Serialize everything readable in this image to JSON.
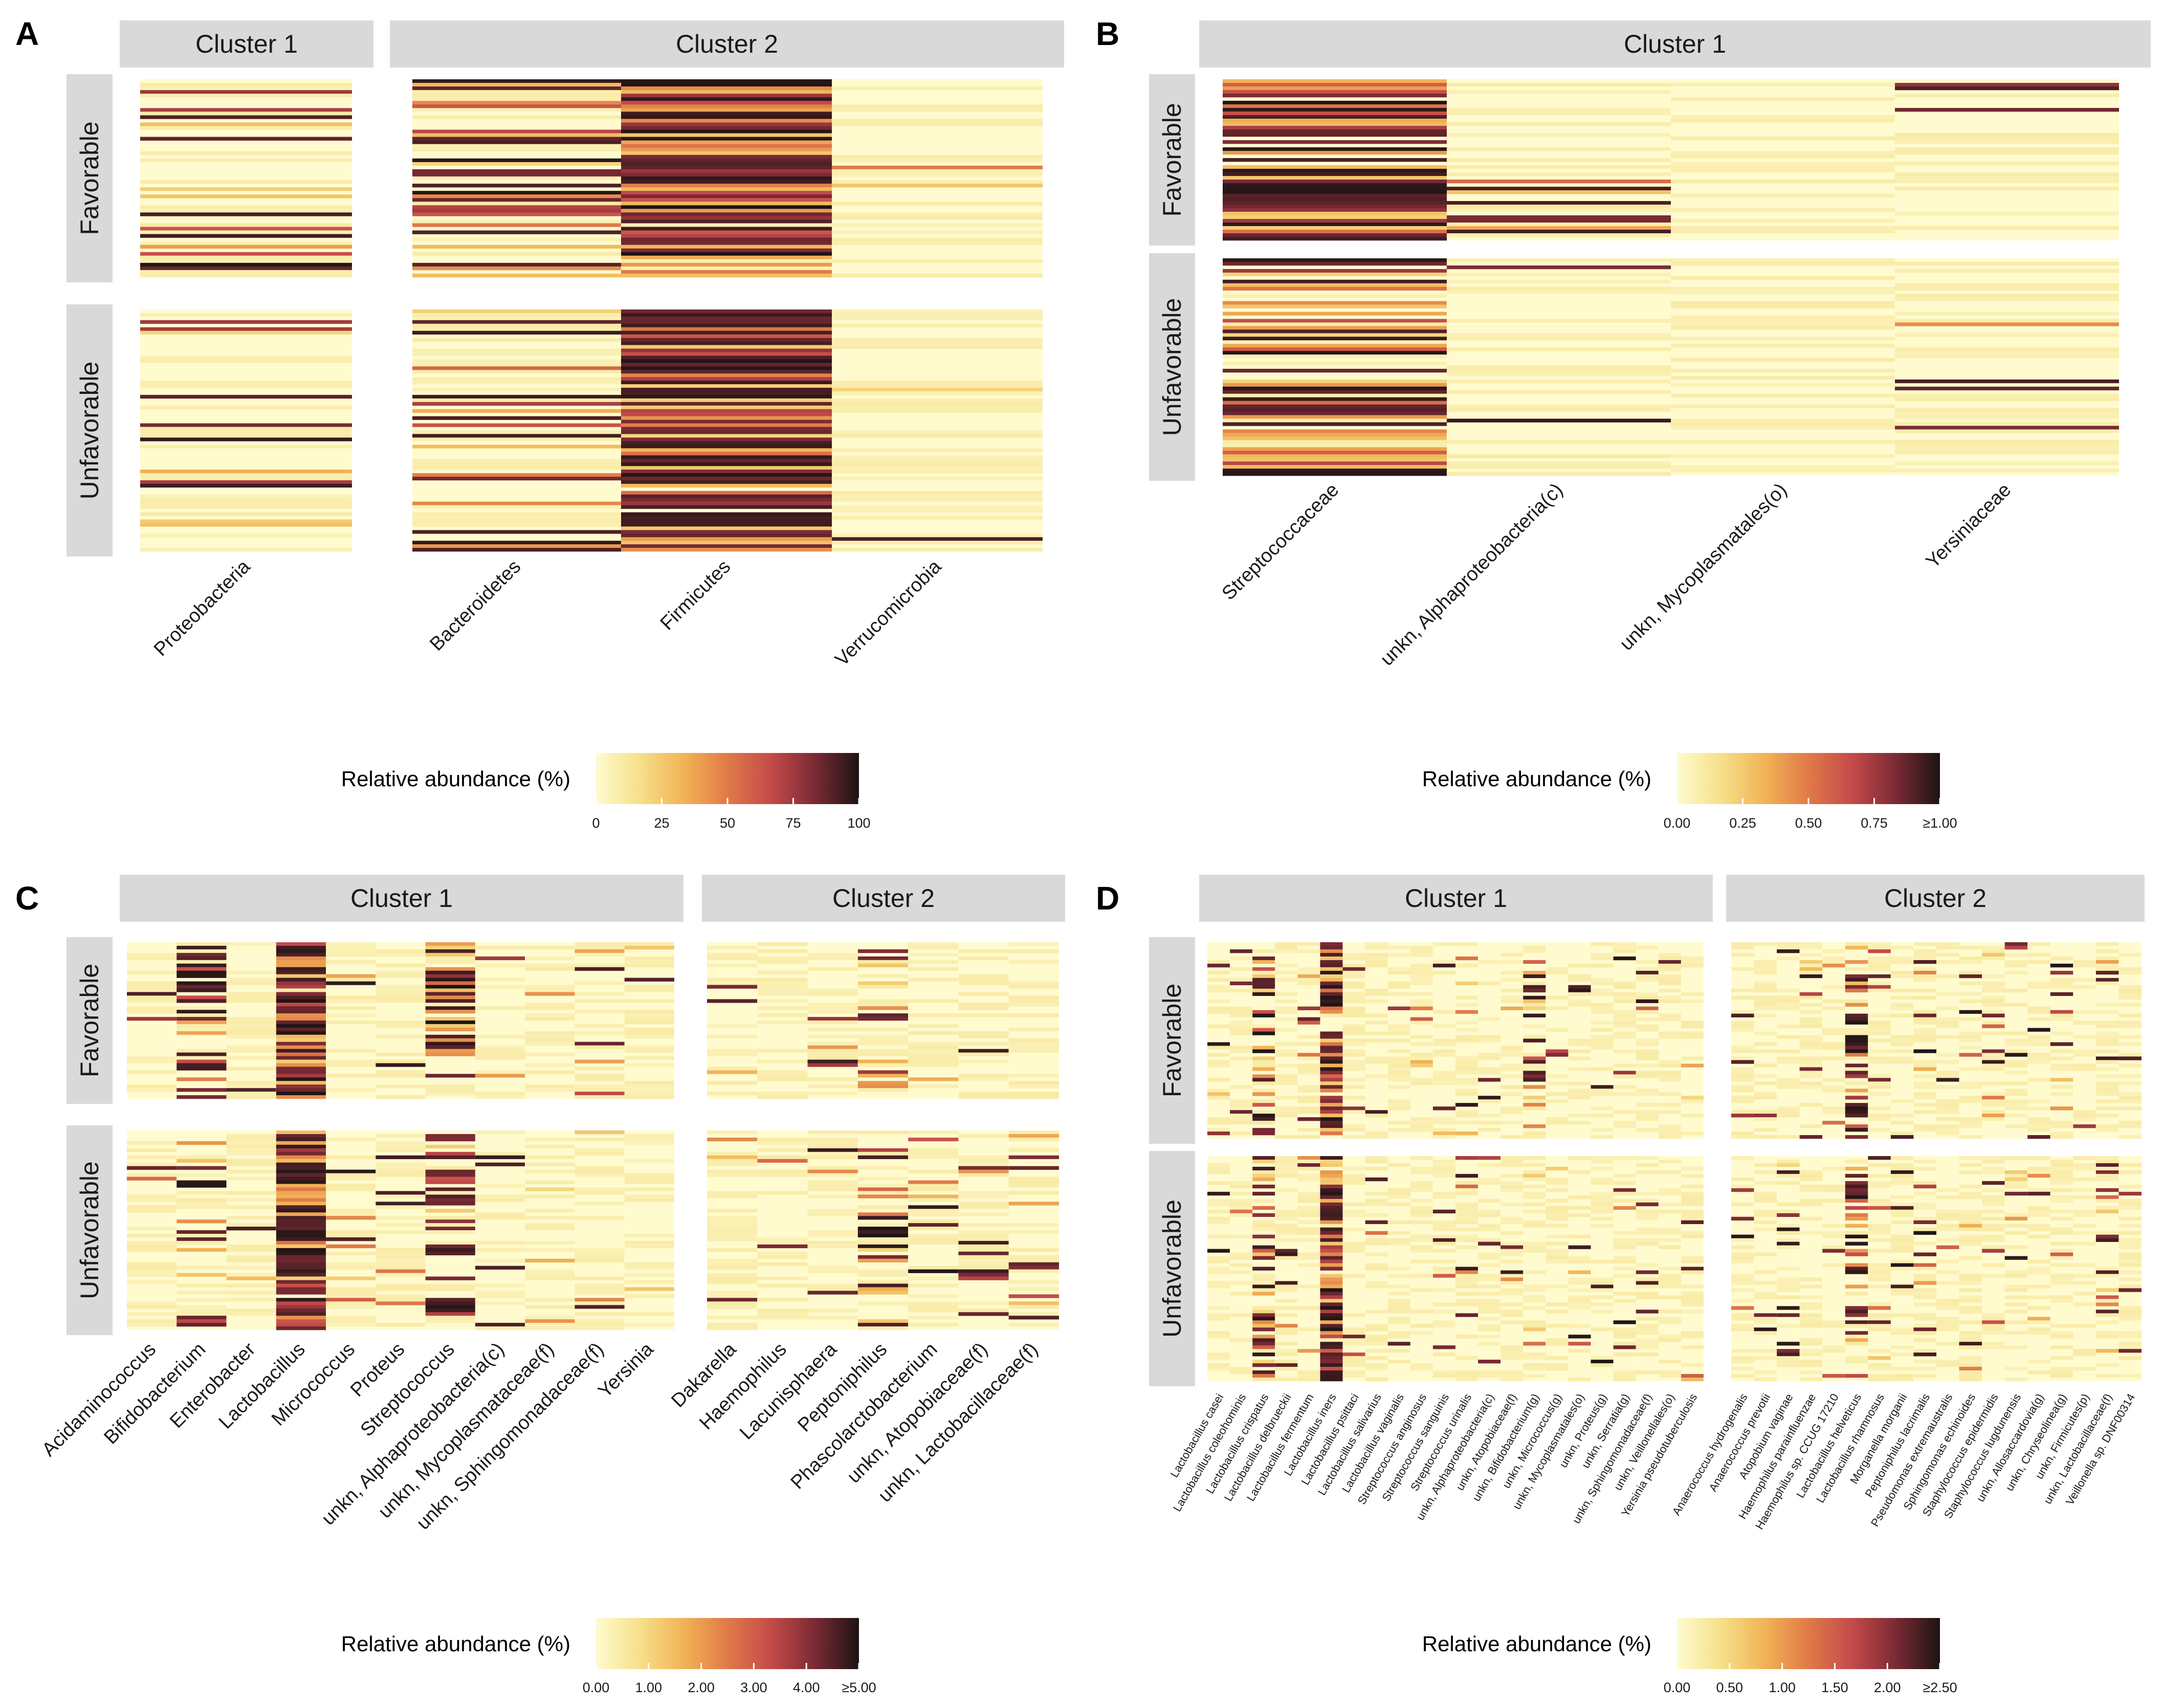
{
  "palette": {
    "strip_bg": "#d9d9d9",
    "colormap": [
      "#fffbcf",
      "#f5e08a",
      "#f2b356",
      "#e07a48",
      "#c44a4a",
      "#7a2a34",
      "#1c1414"
    ]
  },
  "chart_data": [
    {
      "panel": "A",
      "type": "heatmap",
      "column_groups": [
        {
          "label": "Cluster 1",
          "columns": [
            "Proteobacteria"
          ]
        },
        {
          "label": "Cluster 2",
          "columns": [
            "Bacteroidetes",
            "Firmicutes",
            "Verrucomicrobia"
          ]
        }
      ],
      "row_groups": [
        "Favorable",
        "Unfavorable"
      ],
      "legend": {
        "title": "Relative abundance (%)",
        "ticks": [
          "0",
          "25",
          "50",
          "75",
          "100"
        ],
        "range": [
          0,
          100
        ]
      },
      "column_density": {
        "Favorable": {
          "Proteobacteria": 0.3,
          "Bacteroidetes": 0.45,
          "Firmicutes": 0.95,
          "Verrucomicrobia": 0.02
        },
        "Unfavorable": {
          "Proteobacteria": 0.2,
          "Bacteroidetes": 0.35,
          "Firmicutes": 0.95,
          "Verrucomicrobia": 0.02
        }
      }
    },
    {
      "panel": "B",
      "type": "heatmap",
      "column_groups": [
        {
          "label": "Cluster 1",
          "columns": [
            "Streptococcaceae",
            "unkn, Alphaproteobacteria(c)",
            "unkn, Mycoplasmatales(o)",
            "Yersiniaceae"
          ]
        }
      ],
      "row_groups": [
        "Favorable",
        "Unfavorable"
      ],
      "legend": {
        "title": "Relative abundance (%)",
        "ticks": [
          "0.00",
          "0.25",
          "0.50",
          "0.75",
          "≥1.00"
        ],
        "range": [
          0,
          1
        ]
      },
      "column_density": {
        "Favorable": {
          "Streptococcaceae": 0.85,
          "unkn, Alphaproteobacteria(c)": 0.15,
          "unkn, Mycoplasmatales(o)": 0.02,
          "Yersiniaceae": 0.08
        },
        "Unfavorable": {
          "Streptococcaceae": 0.75,
          "unkn, Alphaproteobacteria(c)": 0.1,
          "unkn, Mycoplasmatales(o)": 0.01,
          "Yersiniaceae": 0.06
        }
      }
    },
    {
      "panel": "C",
      "type": "heatmap",
      "column_groups": [
        {
          "label": "Cluster 1",
          "columns": [
            "Acidaminococcus",
            "Bifidobacterium",
            "Enterobacter",
            "Lactobacillus",
            "Micrococcus",
            "Proteus",
            "Streptococcus",
            "unkn, Alphaproteobacteria(c)",
            "unkn, Mycoplasmataceae(f)",
            "unkn, Sphingomonadaceae(f)",
            "Yersinia"
          ]
        },
        {
          "label": "Cluster 2",
          "columns": [
            "Dakarella",
            "Haemophilus",
            "Lacunisphaera",
            "Peptoniphilus",
            "Phascolarctobacterium",
            "unkn, Atopobiaceae(f)",
            "unkn, Lactobacillaceae(f)"
          ]
        }
      ],
      "row_groups": [
        "Favorable",
        "Unfavorable"
      ],
      "legend": {
        "title": "Relative abundance (%)",
        "ticks": [
          "0.00",
          "1.00",
          "2.00",
          "3.00",
          "4.00",
          "≥5.00"
        ],
        "range": [
          0,
          5
        ]
      },
      "column_density": {
        "Favorable": {
          "Bifidobacterium": 0.5,
          "Lactobacillus": 0.95,
          "Streptococcus": 0.6,
          "Peptoniphilus": 0.2,
          "Haemophilus": 0.05
        },
        "Unfavorable": {
          "Bifidobacterium": 0.3,
          "Lactobacillus": 0.95,
          "Streptococcus": 0.5,
          "Peptoniphilus": 0.3,
          "unkn, Atopobiaceae(f)": 0.15,
          "unkn, Lactobacillaceae(f)": 0.2
        }
      }
    },
    {
      "panel": "D",
      "type": "heatmap",
      "column_groups": [
        {
          "label": "Cluster 1",
          "columns": [
            "Lactobacillus casei",
            "Lactobacillus coleohominis",
            "Lactobacillus crispatus",
            "Lactobacillus delbrueckii",
            "Lactobacillus fermentum",
            "Lactobacillus iners",
            "Lactobacillus psittaci",
            "Lactobacillus salivarius",
            "Lactobacillus vaginalis",
            "Streptococcus anginosus",
            "Streptococcus sanguinis",
            "Streptococcus urinalis",
            "unkn, Alphaproteobacteria(c)",
            "unkn, Atopobiaceae(f)",
            "unkn, Bifidobacterium(g)",
            "unkn, Micrococcus(g)",
            "unkn, Mycoplasmatales(o)",
            "unkn, Proteus(g)",
            "unkn, Serratia(g)",
            "unkn, Sphingomonadaceae(f)",
            "unkn, Veillonellales(o)",
            "Yersinia pseudotuberculosis"
          ]
        },
        {
          "label": "Cluster 2",
          "columns": [
            "Anaerococcus hydrogenalis",
            "Anaerococcus prevotii",
            "Atopobium vaginae",
            "Haemophilus parainfluenzae",
            "Haemophilus sp. CCUG 17210",
            "Lactobacillus helveticus",
            "Lactobacillus rhamnosus",
            "Morganella morganii",
            "Peptoniphilus lacrimalis",
            "Pseudomonas extremaustralis",
            "Sphingomonas echinoides",
            "Staphylococcus epidermidis",
            "Staphylococcus lugdunensis",
            "unkn, Allosaccardovia(g)",
            "unkn, Chryseolinea(g)",
            "unkn, Firmicutes(p)",
            "unkn, Lactobacillaceae(f)",
            "Veillonella sp. DNF00314"
          ]
        }
      ],
      "row_groups": [
        "Favorable",
        "Unfavorable"
      ],
      "legend": {
        "title": "Relative abundance (%)",
        "ticks": [
          "0.00",
          "0.50",
          "1.00",
          "1.50",
          "2.00",
          "≥2.50"
        ],
        "range": [
          0,
          2.5
        ]
      },
      "column_density": {
        "Favorable": {
          "Lactobacillus crispatus": 0.4,
          "Lactobacillus iners": 0.9,
          "unkn, Bifidobacterium(g)": 0.4,
          "Lactobacillus helveticus": 0.4
        },
        "Unfavorable": {
          "Lactobacillus crispatus": 0.4,
          "Lactobacillus iners": 0.9,
          "Atopobium vaginae": 0.1,
          "Lactobacillus helveticus": 0.4,
          "unkn, Lactobacillaceae(f)": 0.3
        }
      }
    }
  ]
}
